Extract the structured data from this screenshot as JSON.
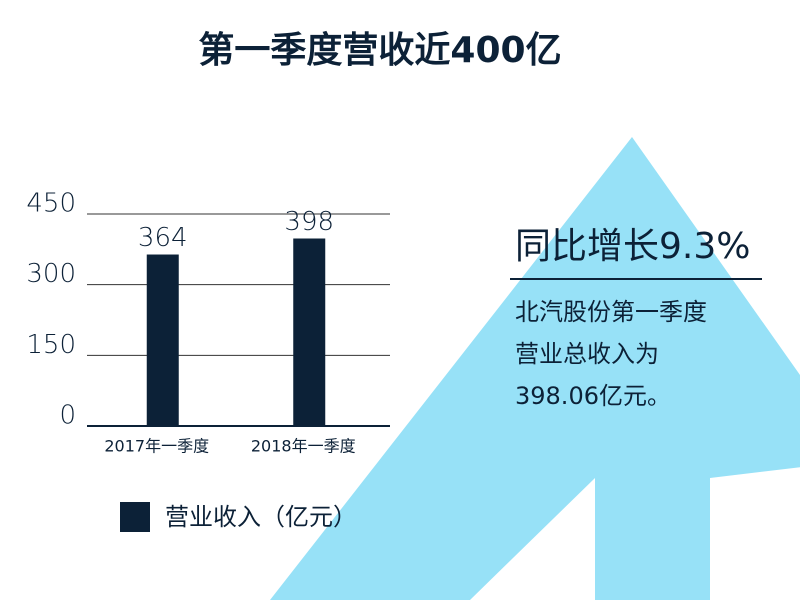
{
  "chart_data": {
    "type": "bar",
    "title": "第一季度营收近400亿",
    "categories": [
      "2017年一季度",
      "2018年一季度"
    ],
    "series": [
      {
        "name": "营业收入（亿元）",
        "color": "#0c2137",
        "values": [
          364,
          398
        ]
      }
    ],
    "ylim": [
      0,
      450
    ],
    "yticks": [
      0,
      150,
      300,
      450
    ],
    "grid": true,
    "legend": "bottom",
    "annotation": {
      "heading": "同比增长9.3%",
      "lines": [
        "北汽股份第一季度",
        "营业总收入为",
        "398.06亿元。"
      ]
    }
  }
}
